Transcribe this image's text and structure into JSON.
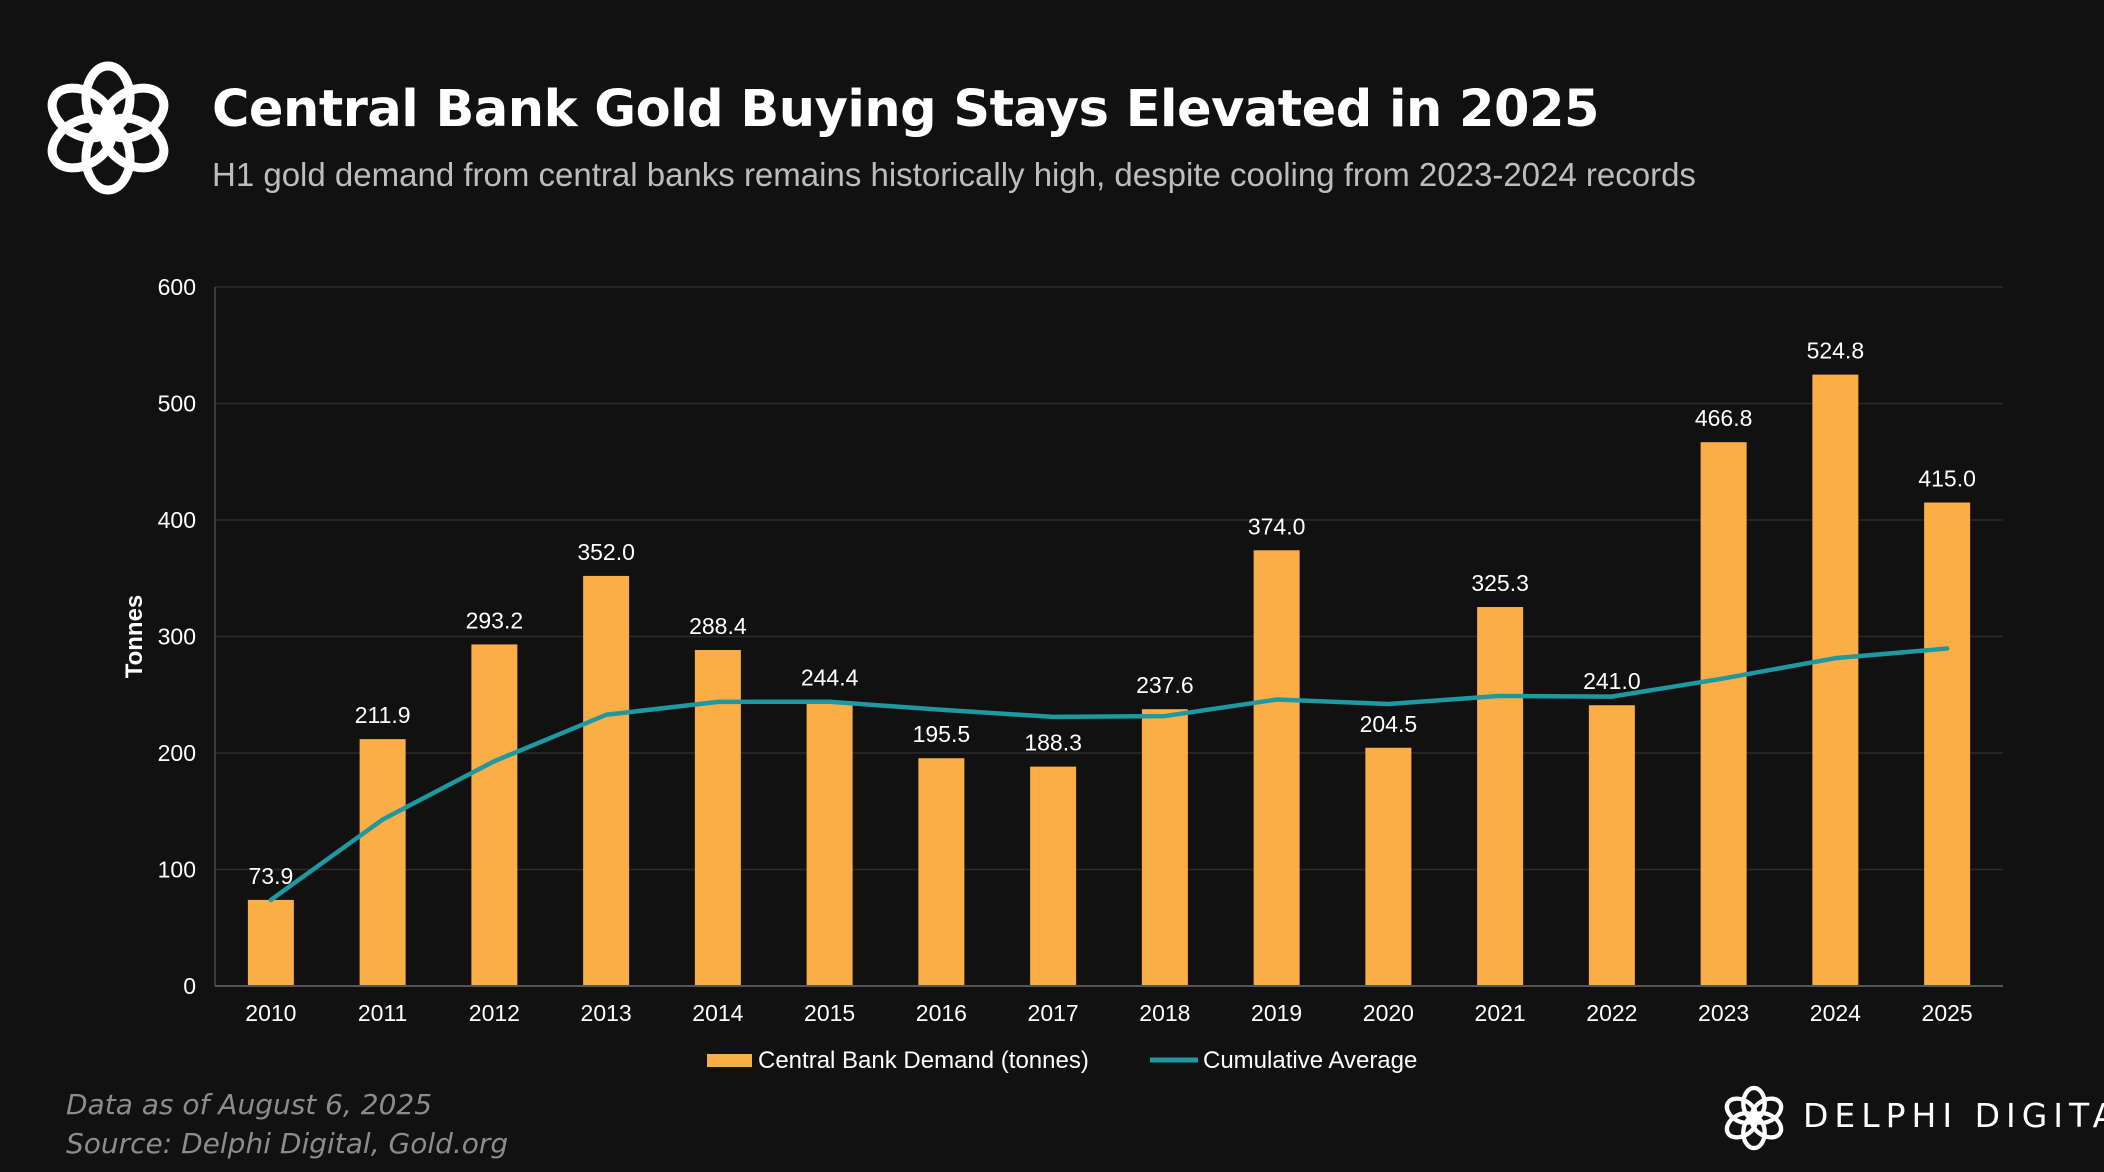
{
  "header": {
    "title": "Central Bank Gold Buying Stays Elevated in 2025",
    "subtitle": "H1 gold demand from central banks remains historically high, despite cooling from 2023-2024 records"
  },
  "footer": {
    "data_as_of": "Data as of August 6, 2025",
    "source": "Source: Delphi Digital, Gold.org",
    "brand": "DELPHI DIGITAL"
  },
  "colors": {
    "bar": "#FCAE46",
    "line": "#1E98A1",
    "background": "#111111",
    "grid": "#2b2b2b"
  },
  "chart_data": {
    "type": "bar",
    "title": "Central Bank Gold Buying Stays Elevated in 2025",
    "xlabel": "",
    "ylabel": "Tonnes",
    "ylim": [
      0,
      600
    ],
    "yticks": [
      0,
      100,
      200,
      300,
      400,
      500,
      600
    ],
    "grid": true,
    "legend_position": "bottom",
    "categories": [
      "2010",
      "2011",
      "2012",
      "2013",
      "2014",
      "2015",
      "2016",
      "2017",
      "2018",
      "2019",
      "2020",
      "2021",
      "2022",
      "2023",
      "2024",
      "2025"
    ],
    "series": [
      {
        "name": "Central Bank Demand (tonnes)",
        "type": "bar",
        "values": [
          73.9,
          211.9,
          293.2,
          352.0,
          288.4,
          244.4,
          195.5,
          188.3,
          237.6,
          374.0,
          204.5,
          325.3,
          241.0,
          466.8,
          524.8,
          415.0
        ],
        "labels": [
          "73.9",
          "211.9",
          "293.2",
          "352.0",
          "288.4",
          "244.4",
          "195.5",
          "188.3",
          "237.6",
          "374.0",
          "204.5",
          "325.3",
          "241.0",
          "466.8",
          "524.8",
          "415.0"
        ]
      },
      {
        "name": "Cumulative Average",
        "type": "line",
        "values": [
          73.9,
          142.9,
          193.0,
          232.8,
          243.9,
          244.0,
          237.1,
          231.0,
          231.7,
          245.9,
          242.1,
          249.0,
          248.4,
          264.0,
          281.4,
          289.7
        ]
      }
    ]
  }
}
